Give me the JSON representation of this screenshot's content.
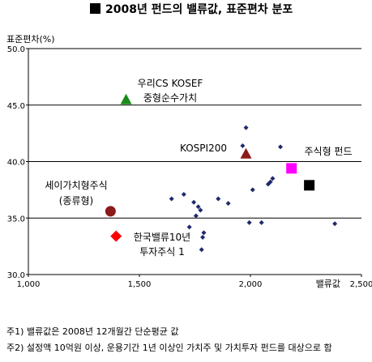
{
  "title": "2008년 펀드의 밸류값, 표준편차 분포",
  "colors": {
    "axis": "#000000",
    "grid": "#000000",
    "point": "#1f2a6b"
  },
  "chart_data": {
    "type": "scatter",
    "title": "2008년 펀드의 밸류값, 표준편차 분포",
    "xlabel": "밸류값",
    "ylabel": "표준편차(%)",
    "xlim": [
      1000,
      2500
    ],
    "ylim": [
      30.0,
      50.0
    ],
    "x_ticks": [
      "1,000",
      "1,500",
      "2,000",
      "2,500"
    ],
    "y_ticks": [
      "30.0",
      "35.0",
      "40.0",
      "45.0",
      "50.0"
    ],
    "y_tick_values": [
      30,
      35,
      40,
      45,
      50
    ],
    "grid": "horizontal",
    "series": [
      {
        "marker": "diamond",
        "color": "#1f2a6b",
        "points": [
          [
            1645,
            36.7
          ],
          [
            1700,
            37.1
          ],
          [
            1725,
            34.2
          ],
          [
            1745,
            36.4
          ],
          [
            1755,
            35.2
          ],
          [
            1765,
            36.0
          ],
          [
            1775,
            35.7
          ],
          [
            1780,
            32.2
          ],
          [
            1785,
            33.3
          ],
          [
            1790,
            33.7
          ],
          [
            1855,
            36.7
          ],
          [
            1900,
            36.3
          ],
          [
            1965,
            41.4
          ],
          [
            1980,
            43.0
          ],
          [
            1995,
            34.6
          ],
          [
            2010,
            37.5
          ],
          [
            2050,
            34.6
          ],
          [
            2080,
            38.0
          ],
          [
            2090,
            38.2
          ],
          [
            2100,
            38.5
          ],
          [
            2135,
            41.3
          ],
          [
            2380,
            34.5
          ]
        ]
      }
    ],
    "highlights": [
      {
        "label": "우리CS KOSEF 중형순수가치",
        "lines": [
          "우리CS KOSEF",
          "중형순수가치"
        ],
        "marker": "triangle",
        "color": "#1a8a1a",
        "x": 1440,
        "y": 45.5
      },
      {
        "label": "KOSPI200",
        "lines": [
          "KOSPI200"
        ],
        "marker": "triangle",
        "color": "#8b1a1a",
        "x": 1980,
        "y": 40.7
      },
      {
        "label": "주식형 펀드",
        "lines": [
          "주식형 펀드"
        ],
        "marker": "square",
        "color": "#ff00ff",
        "x": 2185,
        "y": 39.4
      },
      {
        "label": "",
        "lines": [],
        "marker": "square",
        "color": "#000000",
        "x": 2265,
        "y": 37.9
      },
      {
        "label": "세이가치형주식 (종류형)",
        "lines": [
          "세이가치형주식",
          "(종류형)"
        ],
        "marker": "circle",
        "color": "#8b1a1a",
        "x": 1370,
        "y": 35.6
      },
      {
        "label": "한국밸류10년 투자주식 1",
        "lines": [
          "한국밸류10년",
          "투자주식 1"
        ],
        "marker": "diamond",
        "color": "#ff0000",
        "x": 1395,
        "y": 33.4
      }
    ]
  },
  "footnotes": [
    "주1) 밸류값은 2008년 12개월간 단순평균 값",
    "주2) 설정액 10억원 이상, 운용기간 1년 이상인 가치주 및 가치투자 펀드를 대상으로 함"
  ]
}
